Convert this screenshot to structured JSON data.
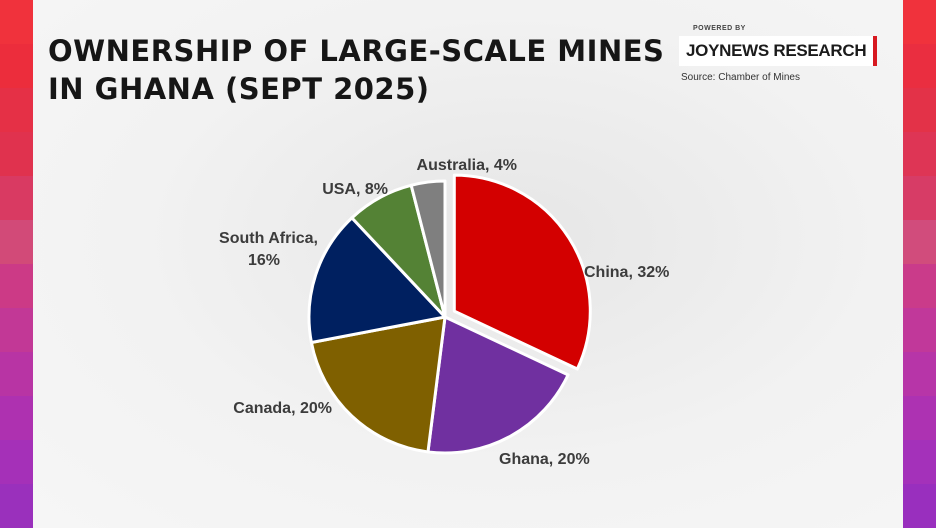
{
  "title_lines": [
    "OWNERSHIP OF LARGE-SCALE MINES",
    "IN GHANA (SEPT 2025)"
  ],
  "branding": {
    "powered_by": "POWERED BY",
    "logo_text": "JOYNEWS RESEARCH",
    "source": "Source: Chamber of Mines",
    "accent_color": "#d71920"
  },
  "side_stripe_colors_left": [
    "#f0323c",
    "#ec2d3c",
    "#e53046",
    "#e0324e",
    "#d93a62",
    "#d24a78",
    "#cc3a86",
    "#c23896",
    "#b834a4",
    "#ae31b0",
    "#a530b8",
    "#9a30bc"
  ],
  "side_stripe_colors_right": [
    "#f0323c",
    "#ea2e40",
    "#e33248",
    "#de3555",
    "#d73c66",
    "#d14c7c",
    "#ca3b8a",
    "#c1389a",
    "#b735a8",
    "#ad32b2",
    "#a431ba",
    "#992fbe"
  ],
  "chart_data": {
    "type": "pie",
    "title": "OWNERSHIP OF LARGE-SCALE MINES IN GHANA (SEPT 2025)",
    "unit": "%",
    "start_angle_deg": 0,
    "direction": "clockwise",
    "legend": "none (direct labels)",
    "slices": [
      {
        "label": "China",
        "value": 32,
        "display": "China, 32%",
        "color": "#d30000",
        "exploded": true
      },
      {
        "label": "Ghana",
        "value": 20,
        "display": "Ghana, 20%",
        "color": "#7030a0",
        "exploded": false
      },
      {
        "label": "Canada",
        "value": 20,
        "display": "Canada, 20%",
        "color": "#7f6000",
        "exploded": false
      },
      {
        "label": "South Africa",
        "value": 16,
        "display": "South Africa,|16%",
        "color": "#002060",
        "exploded": false
      },
      {
        "label": "USA",
        "value": 8,
        "display": "USA, 8%",
        "color": "#548235",
        "exploded": false
      },
      {
        "label": "Australia",
        "value": 4,
        "display": "Australia, 4%",
        "color": "#7f7f7f",
        "exploded": false
      }
    ]
  }
}
